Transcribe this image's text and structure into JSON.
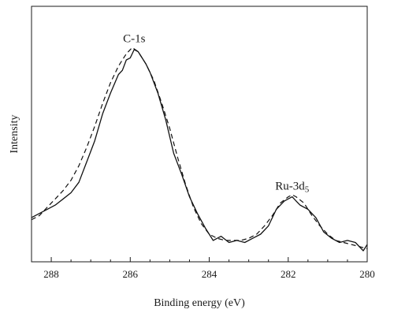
{
  "chart_data": {
    "type": "line",
    "title": "",
    "xlabel": "Binding energy (eV)",
    "ylabel": "Intensity",
    "xlim": [
      288.5,
      280
    ],
    "x_reversed": true,
    "ylim": [
      0,
      1
    ],
    "y_ticks_shown": false,
    "grid": false,
    "x_ticks": [
      288,
      286,
      284,
      282,
      280
    ],
    "x_tick_labels": [
      "288",
      "286",
      "284",
      "282",
      "280"
    ],
    "annotations": [
      {
        "text": "C-1s",
        "x": 285.9,
        "y": 0.975
      },
      {
        "text": "Ru-3d5",
        "x": 281.9,
        "y": 0.265
      }
    ],
    "series": [
      {
        "style": "solid",
        "x": [
          288.5,
          288.3,
          288.1,
          287.9,
          287.7,
          287.5,
          287.3,
          287.1,
          286.9,
          286.7,
          286.5,
          286.3,
          286.2,
          286.1,
          286.0,
          285.9,
          285.8,
          285.7,
          285.6,
          285.5,
          285.3,
          285.1,
          284.9,
          284.7,
          284.5,
          284.3,
          284.1,
          283.9,
          283.7,
          283.5,
          283.3,
          283.1,
          282.9,
          282.7,
          282.5,
          282.3,
          282.1,
          281.9,
          281.8,
          281.7,
          281.5,
          281.3,
          281.1,
          280.9,
          280.7,
          280.5,
          280.3,
          280.1,
          280.0
        ],
        "y": [
          0.16,
          0.18,
          0.2,
          0.22,
          0.25,
          0.28,
          0.33,
          0.43,
          0.53,
          0.66,
          0.76,
          0.85,
          0.87,
          0.92,
          0.93,
          0.97,
          0.96,
          0.93,
          0.9,
          0.86,
          0.76,
          0.63,
          0.47,
          0.37,
          0.26,
          0.18,
          0.11,
          0.05,
          0.07,
          0.04,
          0.05,
          0.04,
          0.06,
          0.08,
          0.12,
          0.2,
          0.24,
          0.26,
          0.24,
          0.22,
          0.2,
          0.16,
          0.09,
          0.06,
          0.04,
          0.05,
          0.04,
          0.0,
          0.03
        ]
      },
      {
        "style": "dashed",
        "x": [
          288.5,
          288.3,
          288.1,
          287.9,
          287.7,
          287.5,
          287.3,
          287.1,
          286.9,
          286.7,
          286.5,
          286.3,
          286.1,
          285.95,
          285.8,
          285.6,
          285.4,
          285.2,
          285.0,
          284.8,
          284.6,
          284.4,
          284.2,
          284.0,
          283.8,
          283.6,
          283.4,
          283.2,
          283.0,
          282.8,
          282.6,
          282.4,
          282.2,
          282.0,
          281.9,
          281.8,
          281.6,
          281.4,
          281.2,
          281.0,
          280.8,
          280.6,
          280.4,
          280.2,
          280.0
        ],
        "y": [
          0.15,
          0.17,
          0.21,
          0.25,
          0.29,
          0.34,
          0.41,
          0.5,
          0.6,
          0.71,
          0.81,
          0.89,
          0.95,
          0.98,
          0.96,
          0.9,
          0.82,
          0.71,
          0.59,
          0.45,
          0.32,
          0.21,
          0.13,
          0.08,
          0.06,
          0.05,
          0.05,
          0.05,
          0.06,
          0.08,
          0.12,
          0.17,
          0.23,
          0.26,
          0.27,
          0.26,
          0.23,
          0.17,
          0.12,
          0.08,
          0.05,
          0.04,
          0.03,
          0.02,
          0.01
        ]
      }
    ]
  }
}
